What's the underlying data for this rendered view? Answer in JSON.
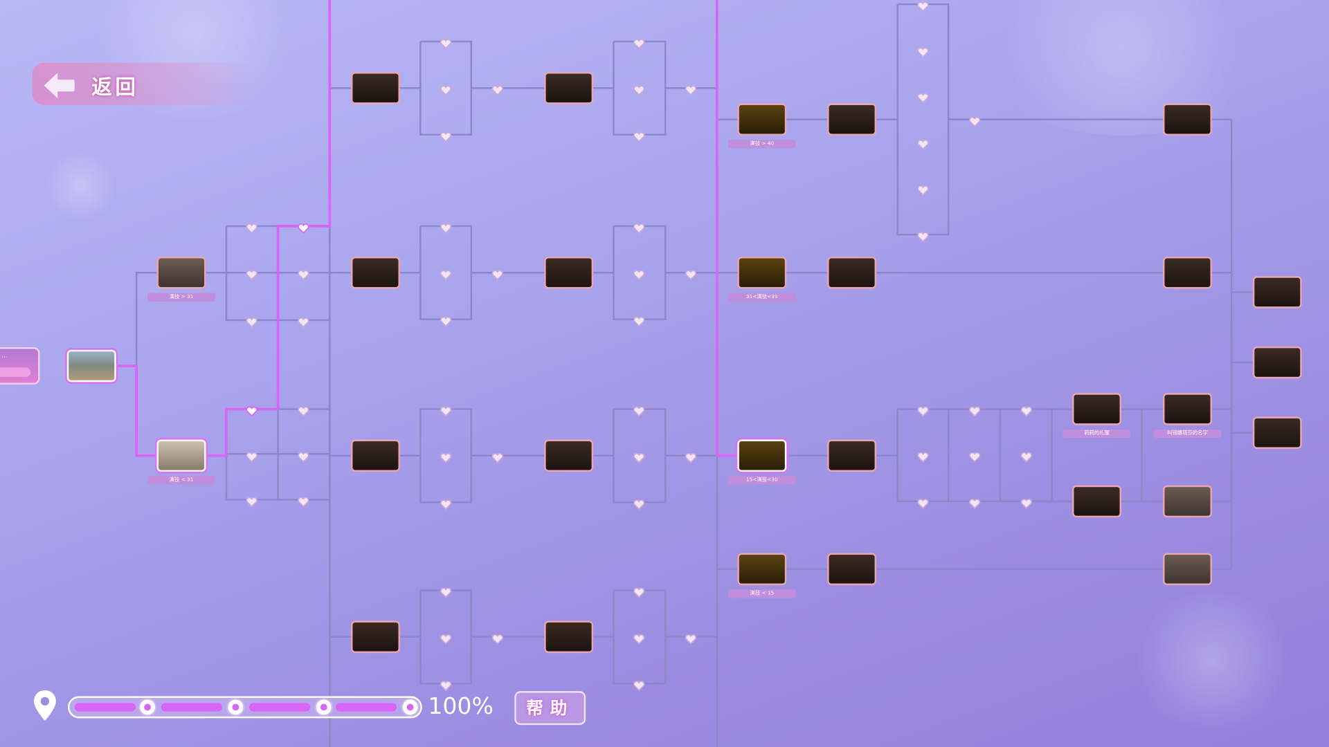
{
  "back_button": {
    "label": "返回"
  },
  "left_card": {
    "title": "..."
  },
  "nodes": {
    "act_gt_31": "演技 > 31",
    "act_lt_31": "演技 < 31",
    "act_gt_40": "演技 > 40",
    "act_31_39": "31<演技<39",
    "act_15_30": "15<演技<30",
    "act_lt_15": "演技 < 15",
    "lily_dress": "莉莉的礼服",
    "wrong_name": "叫错娜塔莎的名字"
  },
  "progress": {
    "percent_label": "100%",
    "value": 100,
    "checkpoints": 4,
    "checkpoints_reached": 4
  },
  "help_button": {
    "label": "帮助"
  },
  "colors": {
    "path_active": "#d865f5",
    "path_inactive": "#8d86c8",
    "label_bg": "#c18ddd",
    "frame": "#e9a5b3"
  }
}
